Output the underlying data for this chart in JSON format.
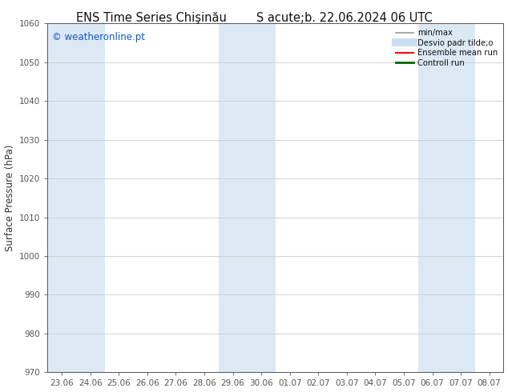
{
  "title_left": "ENS Time Series Chişinău",
  "title_right": "S acute;b. 22.06.2024 06 UTC",
  "ylabel": "Surface Pressure (hPa)",
  "ylim": [
    970,
    1060
  ],
  "yticks": [
    970,
    980,
    990,
    1000,
    1010,
    1020,
    1030,
    1040,
    1050,
    1060
  ],
  "xtick_labels": [
    "23.06",
    "24.06",
    "25.06",
    "26.06",
    "27.06",
    "28.06",
    "29.06",
    "30.06",
    "01.07",
    "02.07",
    "03.07",
    "04.07",
    "05.07",
    "06.07",
    "07.07",
    "08.07"
  ],
  "background_color": "#ffffff",
  "plot_bg_color": "#ffffff",
  "shaded_indices": [
    0,
    1,
    6,
    7,
    13,
    14
  ],
  "shaded_color": "#dce9f5",
  "watermark": "© weatheronline.pt",
  "watermark_color": "#1155cc",
  "legend_items": [
    {
      "label": "min/max",
      "color": "#999999",
      "lw": 1.2,
      "style": "solid"
    },
    {
      "label": "Desvio padr tilde;o",
      "color": "#c8ddf0",
      "lw": 7,
      "style": "solid"
    },
    {
      "label": "Ensemble mean run",
      "color": "#ff0000",
      "lw": 1.5,
      "style": "solid"
    },
    {
      "label": "Controll run",
      "color": "#006600",
      "lw": 2,
      "style": "solid"
    }
  ],
  "grid_color": "#cccccc",
  "tick_color": "#555555",
  "spine_color": "#555555",
  "figsize": [
    6.34,
    4.9
  ],
  "dpi": 100
}
